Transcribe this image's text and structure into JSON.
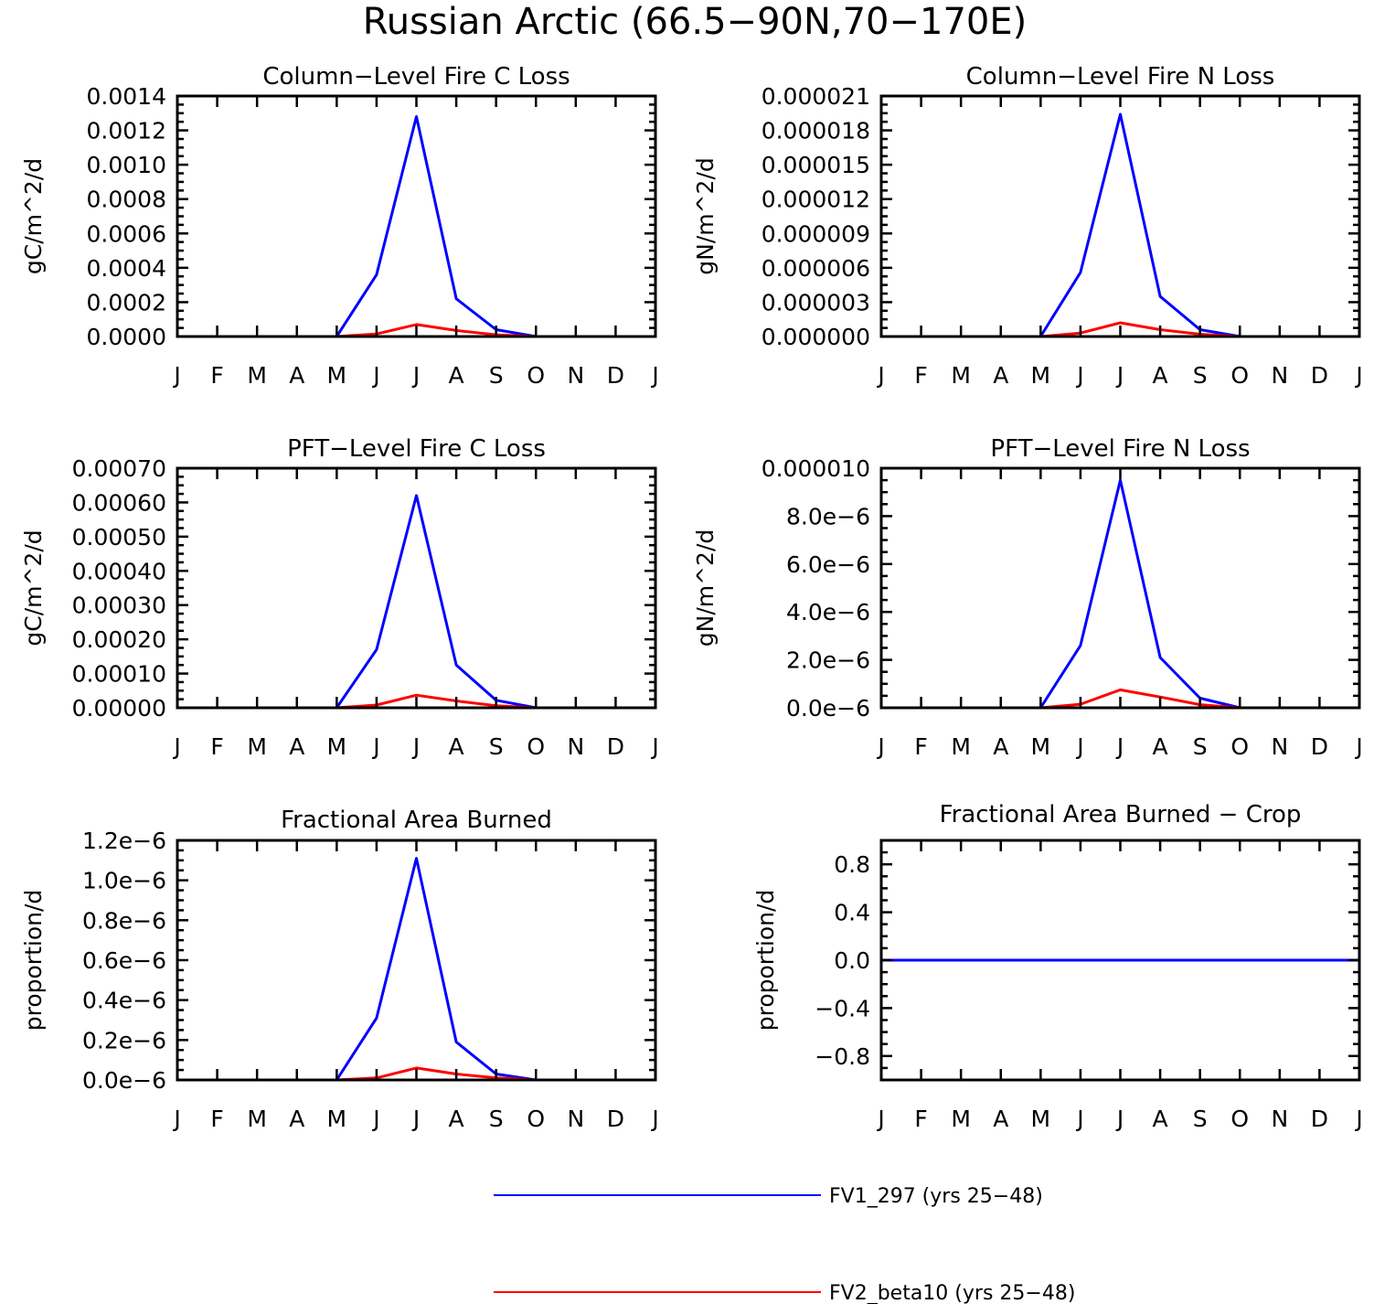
{
  "figure": {
    "title": "Russian Arctic (66.5-90N,70-170E)"
  },
  "legend": [
    {
      "name": "FV1_297 (yrs 25-48)",
      "color": "#0000ff"
    },
    {
      "name": "FV2_beta10 (yrs 25-48)",
      "color": "#ff0000"
    }
  ],
  "chart_data": [
    {
      "type": "line",
      "title": "Column-Level Fire C Loss",
      "ylabel": "gC/m^2/d",
      "xlabel": "",
      "categories": [
        "J",
        "F",
        "M",
        "A",
        "M",
        "J",
        "J",
        "A",
        "S",
        "O",
        "N",
        "D",
        "J"
      ],
      "ylim": [
        0,
        0.0014
      ],
      "yticks": [
        0,
        0.0002,
        0.0004,
        0.0006,
        0.0008,
        0.001,
        0.0012,
        0.0014
      ],
      "ytick_labels": [
        "0.0000",
        "0.0002",
        "0.0004",
        "0.0006",
        "0.0008",
        "0.0010",
        "0.0012",
        "0.0014"
      ],
      "series": [
        {
          "name": "FV1_297 (yrs 25-48)",
          "color": "#0000ff",
          "values": [
            0,
            0,
            0,
            0,
            0,
            0.00036,
            0.00128,
            0.00022,
            4e-05,
            0,
            0,
            0,
            0
          ]
        },
        {
          "name": "FV2_beta10 (yrs 25-48)",
          "color": "#ff0000",
          "values": [
            0,
            0,
            0,
            0,
            0,
            1.5e-05,
            7e-05,
            3.5e-05,
            1e-05,
            0,
            0,
            0,
            0
          ]
        }
      ]
    },
    {
      "type": "line",
      "title": "Column-Level Fire N Loss",
      "ylabel": "gN/m^2/d",
      "xlabel": "",
      "categories": [
        "J",
        "F",
        "M",
        "A",
        "M",
        "J",
        "J",
        "A",
        "S",
        "O",
        "N",
        "D",
        "J"
      ],
      "ylim": [
        0,
        2.1e-05
      ],
      "yticks": [
        0,
        3e-06,
        6e-06,
        9e-06,
        1.2e-05,
        1.5e-05,
        1.8e-05,
        2.1e-05
      ],
      "ytick_labels": [
        "0.000000",
        "0.000003",
        "0.000006",
        "0.000009",
        "0.000012",
        "0.000015",
        "0.000018",
        "0.000021"
      ],
      "series": [
        {
          "name": "FV1_297 (yrs 25-48)",
          "color": "#0000ff",
          "values": [
            0,
            0,
            0,
            0,
            0,
            5.6e-06,
            1.94e-05,
            3.5e-06,
            6e-07,
            0,
            0,
            0,
            0
          ]
        },
        {
          "name": "FV2_beta10 (yrs 25-48)",
          "color": "#ff0000",
          "values": [
            0,
            0,
            0,
            0,
            0,
            3e-07,
            1.2e-06,
            6e-07,
            2e-07,
            0,
            0,
            0,
            0
          ]
        }
      ]
    },
    {
      "type": "line",
      "title": "PFT-Level Fire C Loss",
      "ylabel": "gC/m^2/d",
      "xlabel": "",
      "categories": [
        "J",
        "F",
        "M",
        "A",
        "M",
        "J",
        "J",
        "A",
        "S",
        "O",
        "N",
        "D",
        "J"
      ],
      "ylim": [
        0,
        0.0007
      ],
      "yticks": [
        0,
        0.0001,
        0.0002,
        0.0003,
        0.0004,
        0.0005,
        0.0006,
        0.0007
      ],
      "ytick_labels": [
        "0.00000",
        "0.00010",
        "0.00020",
        "0.00030",
        "0.00040",
        "0.00050",
        "0.00060",
        "0.00070"
      ],
      "series": [
        {
          "name": "FV1_297 (yrs 25-48)",
          "color": "#0000ff",
          "values": [
            0,
            0,
            0,
            0,
            0,
            0.00017,
            0.00062,
            0.000125,
            2.2e-05,
            0,
            0,
            0,
            0
          ]
        },
        {
          "name": "FV2_beta10 (yrs 25-48)",
          "color": "#ff0000",
          "values": [
            0,
            0,
            0,
            0,
            0,
            8e-06,
            3.7e-05,
            2e-05,
            6e-06,
            0,
            0,
            0,
            0
          ]
        }
      ]
    },
    {
      "type": "line",
      "title": "PFT-Level Fire N Loss",
      "ylabel": "gN/m^2/d",
      "xlabel": "",
      "categories": [
        "J",
        "F",
        "M",
        "A",
        "M",
        "J",
        "J",
        "A",
        "S",
        "O",
        "N",
        "D",
        "J"
      ],
      "ylim": [
        0,
        1e-05
      ],
      "yticks": [
        0,
        2e-06,
        4e-06,
        6e-06,
        8e-06,
        1e-05
      ],
      "ytick_labels": [
        "0.0e-6",
        "2.0e-6",
        "4.0e-6",
        "6.0e-6",
        "8.0e-6",
        "0.000010"
      ],
      "series": [
        {
          "name": "FV1_297 (yrs 25-48)",
          "color": "#0000ff",
          "values": [
            0,
            0,
            0,
            0,
            0,
            2.6e-06,
            9.5e-06,
            2.1e-06,
            4e-07,
            0,
            0,
            0,
            0
          ]
        },
        {
          "name": "FV2_beta10 (yrs 25-48)",
          "color": "#ff0000",
          "values": [
            0,
            0,
            0,
            0,
            0,
            1.5e-07,
            7.5e-07,
            4.5e-07,
            1.3e-07,
            0,
            0,
            0,
            0
          ]
        }
      ]
    },
    {
      "type": "line",
      "title": "Fractional Area Burned",
      "ylabel": "proportion/d",
      "xlabel": "",
      "categories": [
        "J",
        "F",
        "M",
        "A",
        "M",
        "J",
        "J",
        "A",
        "S",
        "O",
        "N",
        "D",
        "J"
      ],
      "ylim": [
        0,
        1.2e-06
      ],
      "yticks": [
        0,
        2e-07,
        4e-07,
        6e-07,
        8e-07,
        1e-06,
        1.2e-06
      ],
      "ytick_labels": [
        "0.0e-6",
        "0.2e-6",
        "0.4e-6",
        "0.6e-6",
        "0.8e-6",
        "1.0e-6",
        "1.2e-6"
      ],
      "series": [
        {
          "name": "FV1_297 (yrs 25-48)",
          "color": "#0000ff",
          "values": [
            0,
            0,
            0,
            0,
            0,
            3.1e-07,
            1.11e-06,
            1.9e-07,
            3e-08,
            0,
            0,
            0,
            0
          ]
        },
        {
          "name": "FV2_beta10 (yrs 25-48)",
          "color": "#ff0000",
          "values": [
            0,
            0,
            0,
            0,
            0,
            1e-08,
            6e-08,
            3e-08,
            1e-08,
            0,
            0,
            0,
            0
          ]
        }
      ]
    },
    {
      "type": "line",
      "title": "Fractional Area Burned - Crop",
      "ylabel": "proportion/d",
      "xlabel": "",
      "categories": [
        "J",
        "F",
        "M",
        "A",
        "M",
        "J",
        "J",
        "A",
        "S",
        "O",
        "N",
        "D",
        "J"
      ],
      "ylim": [
        -1.0,
        1.0
      ],
      "yticks": [
        -0.8,
        -0.4,
        0.0,
        0.4,
        0.8
      ],
      "ytick_labels": [
        "-0.8",
        "-0.4",
        "0.0",
        "0.4",
        "0.8"
      ],
      "series": [
        {
          "name": "FV2_beta10 (yrs 25-48)",
          "color": "#ff0000",
          "values": [
            0,
            0,
            0,
            0,
            0,
            0,
            0,
            0,
            0,
            0,
            0,
            0,
            0
          ]
        },
        {
          "name": "FV1_297 (yrs 25-48)",
          "color": "#0000ff",
          "values": [
            0,
            0,
            0,
            0,
            0,
            0,
            0,
            0,
            0,
            0,
            0,
            0,
            0
          ]
        }
      ]
    }
  ]
}
